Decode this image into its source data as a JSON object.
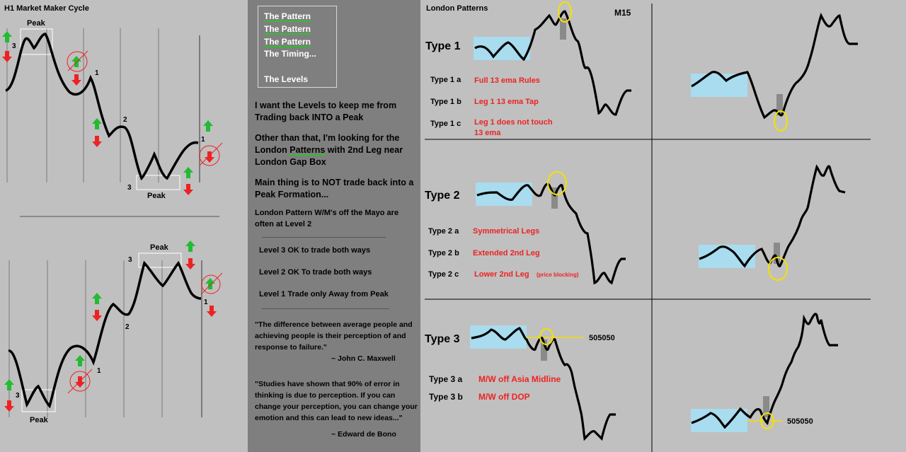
{
  "left": {
    "title": "H1 Market Maker Cycle",
    "peak_label": "Peak",
    "level_1": "1",
    "level_2": "2",
    "level_3": "3"
  },
  "middle": {
    "menu": [
      "The Pattern",
      "The Pattern",
      "The Pattern",
      "The Timing...",
      "The Levels"
    ],
    "para1": "I want the Levels  to  keep me from Trading back INTO a Peak",
    "para2_pre": "Other than that, I'm looking for the London ",
    "para2_link": "Patterns",
    "para2_post": " with 2nd Leg near London Gap Box",
    "para3": "Main thing is to NOT trade back into a Peak Formation...",
    "para4": "London Pattern W/M's off the Mayo are often at Level 2",
    "level3": "Level 3 OK to trade both ways",
    "level2": "Level 2 OK To trade both ways",
    "level1": "Level 1 Trade only Away from Peak",
    "quote1": "\"The difference between average people and achieving people is their perception of and response to failure.\"",
    "author1": "~ John C. Maxwell",
    "quote2": "\"Studies have shown that 90% of error in thinking is due to perception.  If you can change your perception, you can change your emotion and this can lead to new ideas...\"",
    "author2": "~ Edward de Bono"
  },
  "right": {
    "title": "London Patterns",
    "timeframe": "M15",
    "type1": {
      "title": "Type 1",
      "rows": [
        {
          "label": "Type 1 a",
          "desc": "Full 13 ema Rules"
        },
        {
          "label": "Type 1 b",
          "desc": "Leg 1 13 ema Tap"
        },
        {
          "label": "Type 1 c",
          "desc": "Leg 1 does not touch",
          "desc2": "13 ema"
        }
      ]
    },
    "type2": {
      "title": "Type 2",
      "rows": [
        {
          "label": "Type 2 a",
          "desc": "Symmetrical Legs"
        },
        {
          "label": "Type 2 b",
          "desc": "Extended 2nd Leg"
        },
        {
          "label": "Type 2  c",
          "desc": "Lower 2nd Leg",
          "note": "(price blocking)"
        }
      ]
    },
    "type3": {
      "title": "Type 3",
      "level_label": "505050",
      "rows": [
        {
          "label": "Type 3  a",
          "desc": "M/W off Asia Midline"
        },
        {
          "label": "Type 3  b",
          "desc": "M/W off DOP"
        }
      ]
    },
    "right_level_label": "505050"
  },
  "colors": {
    "box": "#a8dcee",
    "red": "#ee2222",
    "green": "#22bb33",
    "yellow": "#f5e000",
    "mid_bg": "#7f7f7f",
    "bg": "#c0c0c0"
  }
}
